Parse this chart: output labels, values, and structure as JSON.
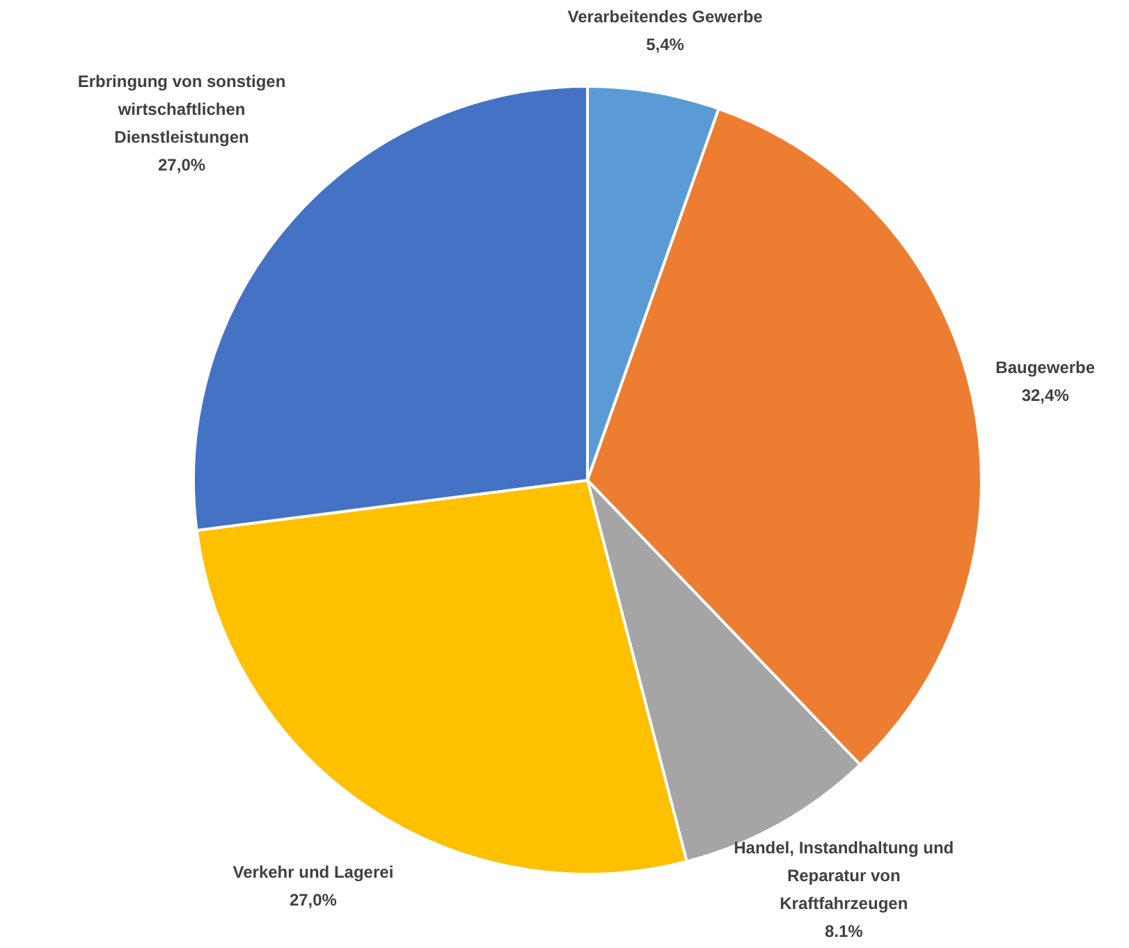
{
  "chart_data": {
    "type": "pie",
    "categories": [
      "Verarbeitendes Gewerbe",
      "Baugewerbe",
      "Handel, Instandhaltung und Reparatur von Kraftfahrzeugen",
      "Verkehr und Lagerei",
      "Erbringung von sonstigen wirtschaftlichen Dienstleistungen"
    ],
    "values": [
      5.4,
      32.4,
      8.1,
      27.0,
      27.0
    ],
    "colors": [
      "#5b9bd5",
      "#ed7d31",
      "#a5a5a5",
      "#ffc000",
      "#4472c4"
    ],
    "value_labels": [
      "5,4%",
      "32,4%",
      "8.1%",
      "27,0%",
      "27,0%"
    ]
  }
}
